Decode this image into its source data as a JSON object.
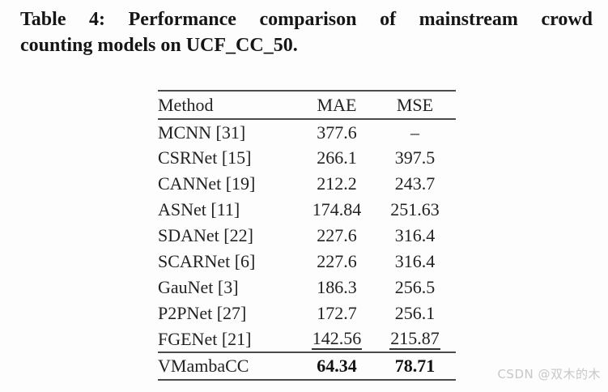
{
  "caption": {
    "line1": "Table 4: Performance comparison of mainstream crowd",
    "line2": "counting models on UCF_CC_50."
  },
  "table": {
    "columns": [
      "Method",
      "MAE",
      "MSE"
    ],
    "rows": [
      {
        "method": "MCNN [31]",
        "mae": "377.6",
        "mse": "–"
      },
      {
        "method": "CSRNet [15]",
        "mae": "266.1",
        "mse": "397.5"
      },
      {
        "method": "CANNet [19]",
        "mae": "212.2",
        "mse": "243.7"
      },
      {
        "method": "ASNet [11]",
        "mae": "174.84",
        "mse": "251.63"
      },
      {
        "method": "SDANet [22]",
        "mae": "227.6",
        "mse": "316.4"
      },
      {
        "method": "SCARNet [6]",
        "mae": "227.6",
        "mse": "316.4"
      },
      {
        "method": "GauNet [3]",
        "mae": "186.3",
        "mse": "256.5"
      },
      {
        "method": "P2PNet [27]",
        "mae": "172.7",
        "mse": "256.1"
      },
      {
        "method": "FGENet [21]",
        "mae": "142.56",
        "mse": "215.87",
        "style": "underline-second-best"
      },
      {
        "method": "VMambaCC",
        "mae": "64.34",
        "mse": "78.71",
        "style": "bold-best"
      }
    ]
  },
  "watermark": {
    "text": "CSDN @双木的木",
    "color": "#c7c7c7"
  }
}
